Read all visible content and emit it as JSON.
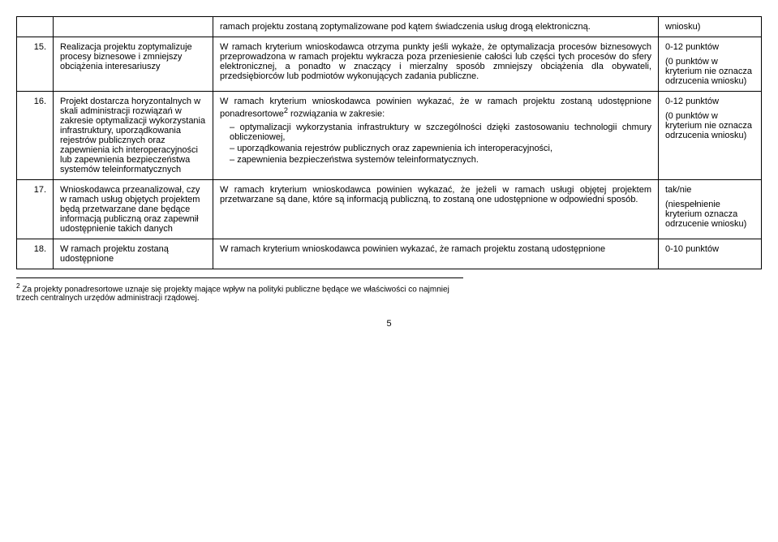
{
  "rows": [
    {
      "num": "",
      "title": "",
      "desc_top": "ramach projektu zostaną zoptymalizowane pod kątem świadczenia usług drogą elektroniczną.",
      "points_top": "wniosku)"
    },
    {
      "num": "15.",
      "title": "Realizacja projektu zoptymalizuje procesy biznesowe i zmniejszy obciążenia interesariuszy",
      "desc": "W ramach kryterium wnioskodawca otrzyma punkty jeśli wykaże, że optymalizacja procesów biznesowych przeprowadzona w ramach projektu wykracza poza przeniesienie całości lub części tych procesów do sfery elektronicznej, a ponadto w znaczący i mierzalny sposób zmniejszy obciążenia dla obywateli, przedsiębiorców lub podmiotów wykonujących zadania publiczne.",
      "points_a": "0-12 punktów",
      "points_b": "(0 punktów w kryterium nie oznacza odrzucenia wniosku)"
    },
    {
      "num": "16.",
      "title": "Projekt dostarcza horyzontalnych w skali administracji rozwiązań w zakresie optymalizacji wykorzystania infrastruktury, uporządkowania rejestrów publicznych oraz zapewnienia ich interoperacyjności lub zapewnienia bezpieczeństwa systemów teleinformatycznych",
      "desc_intro": "W ramach kryterium wnioskodawca powinien wykazać, że w ramach projektu zostaną udostępnione ponadresortowe",
      "desc_sup": "2",
      "desc_intro2": " rozwiązania w zakresie:",
      "bullets": [
        "optymalizacji wykorzystania infrastruktury w szczególności dzięki zastosowaniu technologii chmury obliczeniowej,",
        "uporządkowania rejestrów publicznych oraz zapewnienia ich interoperacyjności,",
        "zapewnienia bezpieczeństwa systemów teleinformatycznych."
      ],
      "points_a": "0-12 punktów",
      "points_b": "(0 punktów w kryterium nie oznacza odrzucenia wniosku)"
    },
    {
      "num": "17.",
      "title": "Wnioskodawca przeanalizował, czy w ramach usług objętych projektem będą przetwarzane dane będące informacją publiczną oraz zapewnił udostępnienie takich danych",
      "desc": "W ramach kryterium wnioskodawca powinien wykazać, że jeżeli w ramach usługi objętej projektem przetwarzane są dane, które są informacją publiczną, to zostaną one udostępnione w odpowiedni sposób.",
      "points_a": "tak/nie",
      "points_b": "(niespełnienie kryterium oznacza odrzucenie wniosku)"
    },
    {
      "num": "18.",
      "title": "W ramach projektu zostaną udostępnione",
      "desc": "W ramach kryterium wnioskodawca powinien wykazać, że ramach projektu zostaną udostępnione",
      "points_a": "0-10 punktów"
    }
  ],
  "footnote_num": "2",
  "footnote_text": " Za projekty ponadresortowe uznaje się projekty mające wpływ na polityki publiczne będące we właściwości co najmniej trzech centralnych urzędów administracji rządowej.",
  "page_number": "5"
}
